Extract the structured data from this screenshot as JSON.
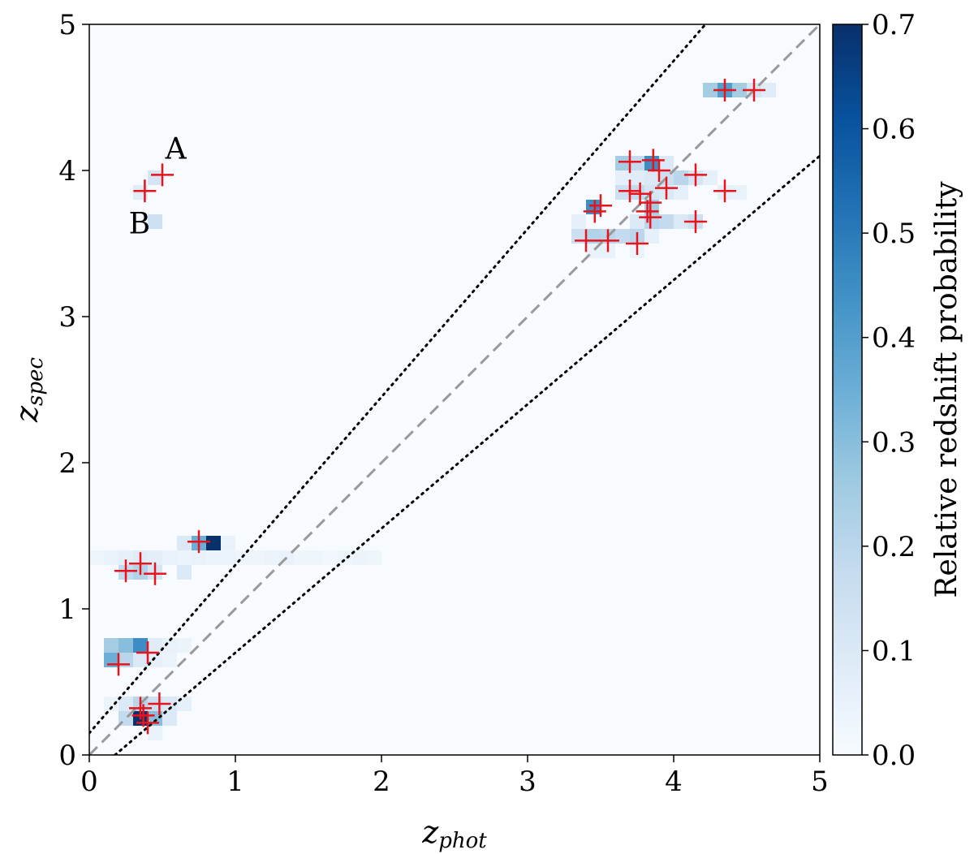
{
  "chart_data": {
    "type": "heatmap",
    "xlabel": "z",
    "xlabel_sub": "phot",
    "ylabel": "z",
    "ylabel_sub": "spec",
    "xlim": [
      0,
      5
    ],
    "ylim": [
      0,
      5
    ],
    "xticks": [
      "0",
      "1",
      "2",
      "3",
      "4",
      "5"
    ],
    "yticks": [
      "0",
      "1",
      "2",
      "3",
      "4",
      "5"
    ],
    "colorbar": {
      "label": "Relative redshift probability",
      "range": [
        0,
        0.7
      ],
      "ticks": [
        "0.0",
        "0.1",
        "0.2",
        "0.3",
        "0.4",
        "0.5",
        "0.6",
        "0.7"
      ],
      "colormap": "Blues"
    },
    "colors": {
      "background": "#f7fbff",
      "marker": "#e8141c",
      "one_to_one_line": "#999999",
      "outlier_lines": "#000000"
    },
    "lines": [
      {
        "style": "dashed",
        "slope": 1,
        "intercept": 0
      },
      {
        "style": "dotted",
        "relation": "z_spec = z_phot + 0.15(1+z_phot)"
      },
      {
        "style": "dotted",
        "relation": "z_spec = z_phot - 0.15(1+z_phot)"
      }
    ],
    "cell_size": [
      0.1,
      0.1
    ],
    "probability_cells": [
      {
        "x": 0.0,
        "y": 1.35,
        "p": 0.03
      },
      {
        "x": 0.1,
        "y": 1.35,
        "p": 0.05
      },
      {
        "x": 0.2,
        "y": 1.35,
        "p": 0.06
      },
      {
        "x": 0.3,
        "y": 1.35,
        "p": 0.08
      },
      {
        "x": 0.4,
        "y": 1.35,
        "p": 0.07
      },
      {
        "x": 0.5,
        "y": 1.35,
        "p": 0.05
      },
      {
        "x": 0.6,
        "y": 1.35,
        "p": 0.04
      },
      {
        "x": 0.7,
        "y": 1.35,
        "p": 0.05
      },
      {
        "x": 0.8,
        "y": 1.35,
        "p": 0.04
      },
      {
        "x": 0.9,
        "y": 1.35,
        "p": 0.04
      },
      {
        "x": 1.0,
        "y": 1.35,
        "p": 0.03
      },
      {
        "x": 1.1,
        "y": 1.35,
        "p": 0.03
      },
      {
        "x": 1.2,
        "y": 1.35,
        "p": 0.04
      },
      {
        "x": 1.3,
        "y": 1.35,
        "p": 0.05
      },
      {
        "x": 1.4,
        "y": 1.35,
        "p": 0.03
      },
      {
        "x": 1.5,
        "y": 1.35,
        "p": 0.03
      },
      {
        "x": 1.6,
        "y": 1.35,
        "p": 0.02
      },
      {
        "x": 1.7,
        "y": 1.35,
        "p": 0.03
      },
      {
        "x": 1.8,
        "y": 1.35,
        "p": 0.04
      },
      {
        "x": 1.9,
        "y": 1.35,
        "p": 0.03
      },
      {
        "x": 0.2,
        "y": 1.25,
        "p": 0.18
      },
      {
        "x": 0.3,
        "y": 1.25,
        "p": 0.22
      },
      {
        "x": 0.4,
        "y": 1.25,
        "p": 0.12
      },
      {
        "x": 0.6,
        "y": 1.25,
        "p": 0.1
      },
      {
        "x": 0.6,
        "y": 1.45,
        "p": 0.1
      },
      {
        "x": 0.7,
        "y": 1.45,
        "p": 0.35
      },
      {
        "x": 0.8,
        "y": 1.45,
        "p": 0.7
      },
      {
        "x": 0.9,
        "y": 1.45,
        "p": 0.05
      },
      {
        "x": 0.1,
        "y": 0.75,
        "p": 0.25
      },
      {
        "x": 0.2,
        "y": 0.75,
        "p": 0.3
      },
      {
        "x": 0.3,
        "y": 0.75,
        "p": 0.45
      },
      {
        "x": 0.4,
        "y": 0.75,
        "p": 0.08
      },
      {
        "x": 0.5,
        "y": 0.75,
        "p": 0.05
      },
      {
        "x": 0.6,
        "y": 0.75,
        "p": 0.04
      },
      {
        "x": 0.1,
        "y": 0.65,
        "p": 0.35
      },
      {
        "x": 0.2,
        "y": 0.65,
        "p": 0.2
      },
      {
        "x": 0.3,
        "y": 0.65,
        "p": 0.1
      },
      {
        "x": 0.4,
        "y": 0.65,
        "p": 0.06
      },
      {
        "x": 0.5,
        "y": 0.65,
        "p": 0.04
      },
      {
        "x": 0.1,
        "y": 0.35,
        "p": 0.04
      },
      {
        "x": 0.2,
        "y": 0.35,
        "p": 0.1
      },
      {
        "x": 0.3,
        "y": 0.35,
        "p": 0.2
      },
      {
        "x": 0.4,
        "y": 0.35,
        "p": 0.15
      },
      {
        "x": 0.5,
        "y": 0.35,
        "p": 0.1
      },
      {
        "x": 0.6,
        "y": 0.35,
        "p": 0.06
      },
      {
        "x": 0.2,
        "y": 0.25,
        "p": 0.18
      },
      {
        "x": 0.3,
        "y": 0.25,
        "p": 0.7
      },
      {
        "x": 0.4,
        "y": 0.25,
        "p": 0.3
      },
      {
        "x": 0.5,
        "y": 0.25,
        "p": 0.1
      },
      {
        "x": 0.4,
        "y": 0.15,
        "p": 0.05
      },
      {
        "x": 0.4,
        "y": 3.95,
        "p": 0.12
      },
      {
        "x": 0.3,
        "y": 3.85,
        "p": 0.08
      },
      {
        "x": 0.4,
        "y": 3.65,
        "p": 0.15
      },
      {
        "x": 4.2,
        "y": 4.55,
        "p": 0.25
      },
      {
        "x": 4.3,
        "y": 4.55,
        "p": 0.4
      },
      {
        "x": 4.4,
        "y": 4.55,
        "p": 0.25
      },
      {
        "x": 4.5,
        "y": 4.55,
        "p": 0.12
      },
      {
        "x": 4.6,
        "y": 4.55,
        "p": 0.08
      },
      {
        "x": 3.6,
        "y": 4.05,
        "p": 0.25
      },
      {
        "x": 3.7,
        "y": 4.05,
        "p": 0.18
      },
      {
        "x": 3.8,
        "y": 4.05,
        "p": 0.45
      },
      {
        "x": 3.9,
        "y": 4.05,
        "p": 0.1
      },
      {
        "x": 3.6,
        "y": 3.95,
        "p": 0.06
      },
      {
        "x": 3.7,
        "y": 3.95,
        "p": 0.08
      },
      {
        "x": 3.8,
        "y": 3.95,
        "p": 0.1
      },
      {
        "x": 3.9,
        "y": 3.95,
        "p": 0.15
      },
      {
        "x": 4.0,
        "y": 3.95,
        "p": 0.2
      },
      {
        "x": 4.1,
        "y": 3.95,
        "p": 0.12
      },
      {
        "x": 4.2,
        "y": 3.95,
        "p": 0.06
      },
      {
        "x": 3.6,
        "y": 3.85,
        "p": 0.15
      },
      {
        "x": 3.7,
        "y": 3.85,
        "p": 0.18
      },
      {
        "x": 3.8,
        "y": 3.85,
        "p": 0.12
      },
      {
        "x": 3.9,
        "y": 3.85,
        "p": 0.1
      },
      {
        "x": 4.0,
        "y": 3.85,
        "p": 0.06
      },
      {
        "x": 4.3,
        "y": 3.85,
        "p": 0.06
      },
      {
        "x": 4.4,
        "y": 3.85,
        "p": 0.05
      },
      {
        "x": 3.4,
        "y": 3.75,
        "p": 0.45
      },
      {
        "x": 3.8,
        "y": 3.75,
        "p": 0.25
      },
      {
        "x": 3.3,
        "y": 3.65,
        "p": 0.06
      },
      {
        "x": 3.7,
        "y": 3.65,
        "p": 0.1
      },
      {
        "x": 3.8,
        "y": 3.65,
        "p": 0.2
      },
      {
        "x": 3.9,
        "y": 3.65,
        "p": 0.18
      },
      {
        "x": 4.0,
        "y": 3.65,
        "p": 0.1
      },
      {
        "x": 4.1,
        "y": 3.65,
        "p": 0.15
      },
      {
        "x": 3.3,
        "y": 3.55,
        "p": 0.15
      },
      {
        "x": 3.4,
        "y": 3.55,
        "p": 0.22
      },
      {
        "x": 3.5,
        "y": 3.55,
        "p": 0.2
      },
      {
        "x": 3.6,
        "y": 3.55,
        "p": 0.18
      },
      {
        "x": 3.7,
        "y": 3.55,
        "p": 0.2
      },
      {
        "x": 3.8,
        "y": 3.55,
        "p": 0.06
      },
      {
        "x": 3.4,
        "y": 3.45,
        "p": 0.05
      },
      {
        "x": 3.5,
        "y": 3.45,
        "p": 0.05
      },
      {
        "x": 3.7,
        "y": 3.45,
        "p": 0.04
      }
    ],
    "markers": [
      {
        "x": 0.5,
        "y": 3.97
      },
      {
        "x": 0.38,
        "y": 3.86
      },
      {
        "x": 4.35,
        "y": 4.55
      },
      {
        "x": 4.55,
        "y": 4.55
      },
      {
        "x": 3.7,
        "y": 4.06
      },
      {
        "x": 3.86,
        "y": 4.07
      },
      {
        "x": 3.9,
        "y": 4.0
      },
      {
        "x": 4.15,
        "y": 3.97
      },
      {
        "x": 3.95,
        "y": 3.88
      },
      {
        "x": 3.7,
        "y": 3.86
      },
      {
        "x": 3.77,
        "y": 3.84
      },
      {
        "x": 3.84,
        "y": 3.78
      },
      {
        "x": 4.35,
        "y": 3.86
      },
      {
        "x": 3.5,
        "y": 3.76
      },
      {
        "x": 3.46,
        "y": 3.72
      },
      {
        "x": 3.82,
        "y": 3.72
      },
      {
        "x": 3.84,
        "y": 3.68
      },
      {
        "x": 4.15,
        "y": 3.65
      },
      {
        "x": 3.4,
        "y": 3.52
      },
      {
        "x": 3.55,
        "y": 3.52
      },
      {
        "x": 3.75,
        "y": 3.5
      },
      {
        "x": 0.75,
        "y": 1.46
      },
      {
        "x": 0.25,
        "y": 1.26
      },
      {
        "x": 0.35,
        "y": 1.31
      },
      {
        "x": 0.45,
        "y": 1.24
      },
      {
        "x": 0.4,
        "y": 0.7
      },
      {
        "x": 0.2,
        "y": 0.62
      },
      {
        "x": 0.35,
        "y": 0.32
      },
      {
        "x": 0.48,
        "y": 0.35
      },
      {
        "x": 0.37,
        "y": 0.27
      },
      {
        "x": 0.4,
        "y": 0.22
      }
    ],
    "annotations": [
      {
        "text": "A",
        "x": 0.52,
        "y": 4.08
      },
      {
        "text": "B",
        "x": 0.27,
        "y": 3.57
      }
    ]
  }
}
